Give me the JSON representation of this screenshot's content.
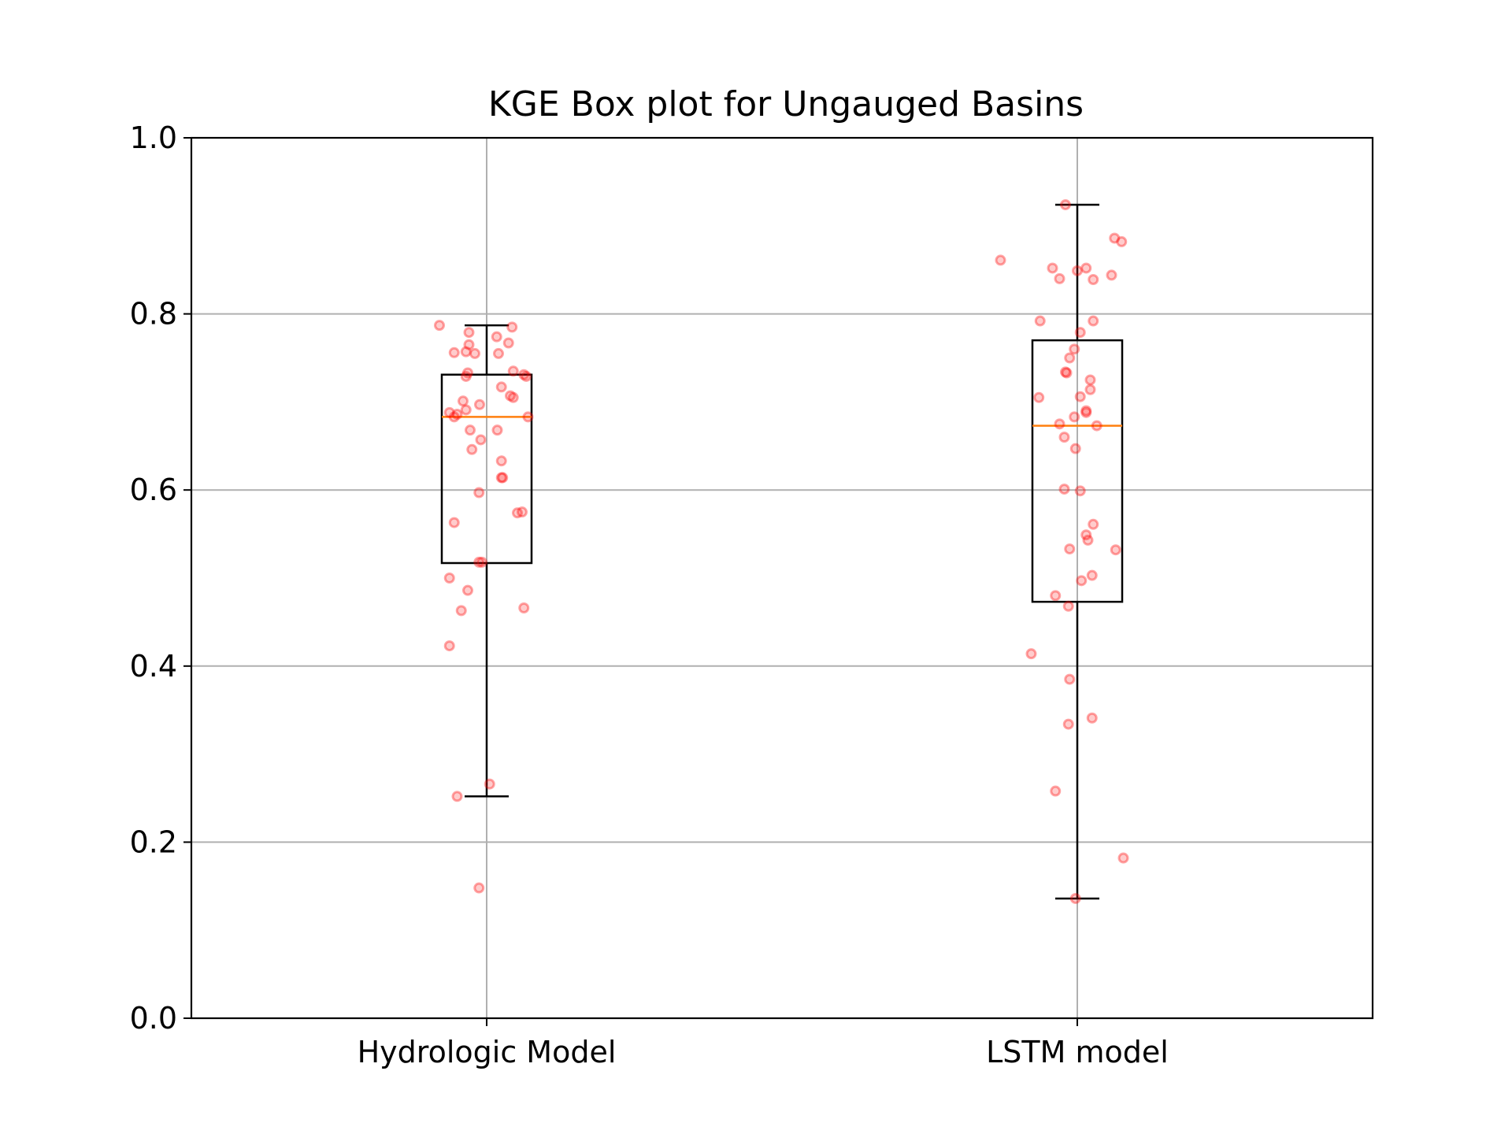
{
  "chart_data": {
    "type": "box",
    "title": "KGE Box plot for Ungauged Basins",
    "xlabel": "",
    "ylabel": "",
    "ylim": [
      0.0,
      1.0
    ],
    "yticks": [
      "0.0",
      "0.2",
      "0.4",
      "0.6",
      "0.8",
      "1.0"
    ],
    "grid": true,
    "categories": [
      "Hydrologic Model",
      "LSTM model"
    ],
    "colors": {
      "box": "#000000",
      "median": "#ff7f0e",
      "points": "#ff0000",
      "grid": "#b0b0b0"
    },
    "series": [
      {
        "name": "Hydrologic Model",
        "whisker_low": 0.252,
        "q1": 0.517,
        "median": 0.683,
        "q3": 0.731,
        "whisker_high": 0.787,
        "points": [
          [
            -0.08,
            0.787
          ],
          [
            0.043,
            0.785
          ],
          [
            -0.03,
            0.779
          ],
          [
            0.017,
            0.774
          ],
          [
            0.037,
            0.767
          ],
          [
            -0.03,
            0.765
          ],
          [
            -0.055,
            0.756
          ],
          [
            -0.035,
            0.757
          ],
          [
            -0.02,
            0.755
          ],
          [
            0.02,
            0.755
          ],
          [
            0.045,
            0.735
          ],
          [
            0.063,
            0.731
          ],
          [
            0.067,
            0.729
          ],
          [
            -0.032,
            0.733
          ],
          [
            -0.035,
            0.729
          ],
          [
            0.025,
            0.717
          ],
          [
            0.04,
            0.707
          ],
          [
            0.045,
            0.705
          ],
          [
            -0.04,
            0.701
          ],
          [
            -0.012,
            0.697
          ],
          [
            -0.035,
            0.691
          ],
          [
            -0.063,
            0.688
          ],
          [
            -0.05,
            0.686
          ],
          [
            -0.055,
            0.683
          ],
          [
            0.07,
            0.683
          ],
          [
            -0.028,
            0.668
          ],
          [
            0.018,
            0.668
          ],
          [
            -0.01,
            0.657
          ],
          [
            -0.025,
            0.646
          ],
          [
            0.025,
            0.633
          ],
          [
            0.025,
            0.614
          ],
          [
            0.027,
            0.614
          ],
          [
            -0.013,
            0.597
          ],
          [
            0.06,
            0.575
          ],
          [
            0.052,
            0.574
          ],
          [
            -0.055,
            0.563
          ],
          [
            -0.013,
            0.518
          ],
          [
            -0.008,
            0.518
          ],
          [
            -0.063,
            0.5
          ],
          [
            -0.032,
            0.486
          ],
          [
            0.063,
            0.466
          ],
          [
            -0.043,
            0.463
          ],
          [
            -0.063,
            0.423
          ],
          [
            0.005,
            0.266
          ],
          [
            -0.05,
            0.252
          ],
          [
            -0.013,
            0.148
          ]
        ]
      },
      {
        "name": "LSTM model",
        "whisker_low": 0.136,
        "q1": 0.473,
        "median": 0.673,
        "q3": 0.77,
        "whisker_high": 0.924,
        "points": [
          [
            -0.02,
            0.924
          ],
          [
            0.063,
            0.886
          ],
          [
            0.075,
            0.882
          ],
          [
            -0.13,
            0.861
          ],
          [
            -0.042,
            0.852
          ],
          [
            0.015,
            0.852
          ],
          [
            0.0,
            0.849
          ],
          [
            -0.03,
            0.84
          ],
          [
            0.027,
            0.839
          ],
          [
            0.058,
            0.844
          ],
          [
            -0.063,
            0.792
          ],
          [
            0.027,
            0.792
          ],
          [
            0.005,
            0.779
          ],
          [
            -0.005,
            0.76
          ],
          [
            -0.013,
            0.75
          ],
          [
            -0.02,
            0.734
          ],
          [
            -0.018,
            0.733
          ],
          [
            0.022,
            0.725
          ],
          [
            0.022,
            0.714
          ],
          [
            -0.065,
            0.705
          ],
          [
            0.005,
            0.706
          ],
          [
            0.015,
            0.69
          ],
          [
            0.015,
            0.688
          ],
          [
            -0.005,
            0.683
          ],
          [
            -0.03,
            0.675
          ],
          [
            0.033,
            0.673
          ],
          [
            -0.022,
            0.66
          ],
          [
            -0.003,
            0.647
          ],
          [
            -0.022,
            0.601
          ],
          [
            0.005,
            0.599
          ],
          [
            0.027,
            0.561
          ],
          [
            0.015,
            0.549
          ],
          [
            0.018,
            0.543
          ],
          [
            0.065,
            0.532
          ],
          [
            -0.013,
            0.533
          ],
          [
            0.025,
            0.503
          ],
          [
            0.007,
            0.497
          ],
          [
            -0.037,
            0.48
          ],
          [
            -0.015,
            0.468
          ],
          [
            -0.078,
            0.414
          ],
          [
            -0.013,
            0.385
          ],
          [
            0.025,
            0.341
          ],
          [
            -0.015,
            0.334
          ],
          [
            -0.037,
            0.258
          ],
          [
            0.078,
            0.182
          ],
          [
            -0.003,
            0.136
          ]
        ]
      }
    ]
  }
}
